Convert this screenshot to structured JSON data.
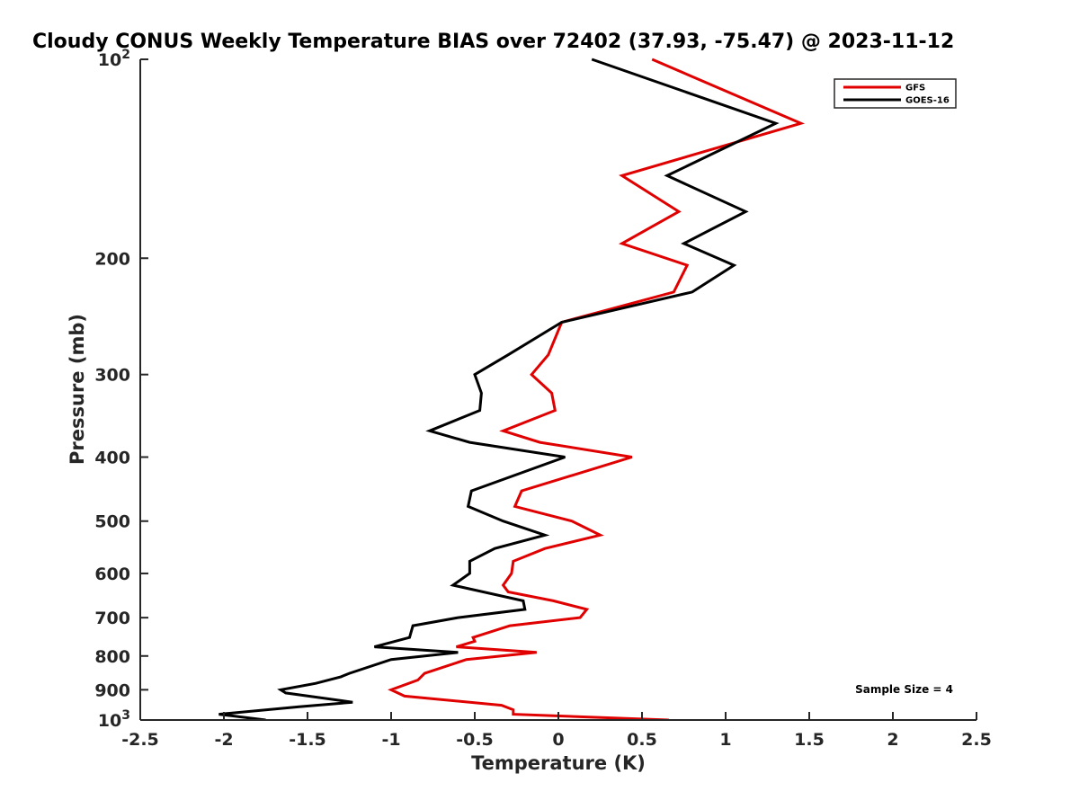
{
  "chart_data": {
    "type": "line",
    "title": "Cloudy CONUS Weekly Temperature BIAS over 72402 (37.93, -75.47) @ 2023-11-12",
    "xlabel": "Temperature (K)",
    "ylabel": "Pressure (mb)",
    "xlim": [
      -2.5,
      2.5
    ],
    "ylim": [
      100,
      1000
    ],
    "y_scale": "log",
    "y_reversed": true,
    "grid": false,
    "legend_position": "top-right",
    "x_ticks": [
      -2.5,
      -2,
      -1.5,
      -1,
      -0.5,
      0,
      0.5,
      1,
      1.5,
      2,
      2.5
    ],
    "x_tick_labels": [
      "-2.5",
      "-2",
      "-1.5",
      "-1",
      "-0.5",
      "0",
      "0.5",
      "1",
      "1.5",
      "2",
      "2.5"
    ],
    "y_ticks": [
      100,
      200,
      300,
      400,
      500,
      600,
      700,
      800,
      900,
      1000
    ],
    "y_tick_labels": [
      {
        "base": "10",
        "exp": "2"
      },
      {
        "base": "200",
        "exp": ""
      },
      {
        "base": "300",
        "exp": ""
      },
      {
        "base": "400",
        "exp": ""
      },
      {
        "base": "500",
        "exp": ""
      },
      {
        "base": "600",
        "exp": ""
      },
      {
        "base": "700",
        "exp": ""
      },
      {
        "base": "800",
        "exp": ""
      },
      {
        "base": "900",
        "exp": ""
      },
      {
        "base": "10",
        "exp": "3"
      }
    ],
    "annotation": "Sample Size = 4",
    "series": [
      {
        "name": "GFS",
        "color": "#e00000",
        "points": [
          [
            0.56,
            100
          ],
          [
            1.45,
            125
          ],
          [
            0.38,
            150
          ],
          [
            0.72,
            170
          ],
          [
            0.38,
            190
          ],
          [
            0.77,
            205
          ],
          [
            0.69,
            225
          ],
          [
            0.02,
            250
          ],
          [
            -0.06,
            280
          ],
          [
            -0.16,
            300
          ],
          [
            -0.04,
            320
          ],
          [
            -0.02,
            340
          ],
          [
            -0.33,
            365
          ],
          [
            -0.11,
            380
          ],
          [
            0.44,
            400
          ],
          [
            -0.22,
            450
          ],
          [
            -0.26,
            475
          ],
          [
            0.08,
            500
          ],
          [
            0.25,
            525
          ],
          [
            -0.08,
            550
          ],
          [
            -0.27,
            575
          ],
          [
            -0.28,
            600
          ],
          [
            -0.33,
            625
          ],
          [
            -0.3,
            640
          ],
          [
            -0.03,
            660
          ],
          [
            0.17,
            680
          ],
          [
            0.13,
            700
          ],
          [
            -0.29,
            720
          ],
          [
            -0.51,
            750
          ],
          [
            -0.5,
            760
          ],
          [
            -0.61,
            775
          ],
          [
            -0.13,
            790
          ],
          [
            -0.55,
            810
          ],
          [
            -0.8,
            850
          ],
          [
            -0.84,
            870
          ],
          [
            -1.0,
            900
          ],
          [
            -0.92,
            920
          ],
          [
            -0.34,
            950
          ],
          [
            -0.27,
            965
          ],
          [
            -0.27,
            980
          ],
          [
            0.66,
            1000
          ]
        ]
      },
      {
        "name": "GOES-16",
        "color": "#000000",
        "points": [
          [
            0.2,
            100
          ],
          [
            1.3,
            125
          ],
          [
            0.65,
            150
          ],
          [
            1.12,
            170
          ],
          [
            0.75,
            190
          ],
          [
            1.05,
            205
          ],
          [
            0.8,
            225
          ],
          [
            0.02,
            250
          ],
          [
            -0.3,
            280
          ],
          [
            -0.5,
            300
          ],
          [
            -0.46,
            320
          ],
          [
            -0.47,
            340
          ],
          [
            -0.77,
            365
          ],
          [
            -0.53,
            380
          ],
          [
            0.04,
            400
          ],
          [
            -0.52,
            450
          ],
          [
            -0.54,
            475
          ],
          [
            -0.33,
            500
          ],
          [
            -0.08,
            525
          ],
          [
            -0.38,
            550
          ],
          [
            -0.53,
            575
          ],
          [
            -0.53,
            600
          ],
          [
            -0.63,
            625
          ],
          [
            -0.21,
            660
          ],
          [
            -0.2,
            680
          ],
          [
            -0.6,
            700
          ],
          [
            -0.87,
            720
          ],
          [
            -0.89,
            750
          ],
          [
            -1.1,
            775
          ],
          [
            -0.6,
            790
          ],
          [
            -1.0,
            810
          ],
          [
            -1.25,
            850
          ],
          [
            -1.3,
            860
          ],
          [
            -1.45,
            880
          ],
          [
            -1.66,
            900
          ],
          [
            -1.63,
            910
          ],
          [
            -1.23,
            940
          ],
          [
            -1.55,
            955
          ],
          [
            -2.03,
            980
          ],
          [
            -1.75,
            1000
          ]
        ]
      }
    ]
  }
}
